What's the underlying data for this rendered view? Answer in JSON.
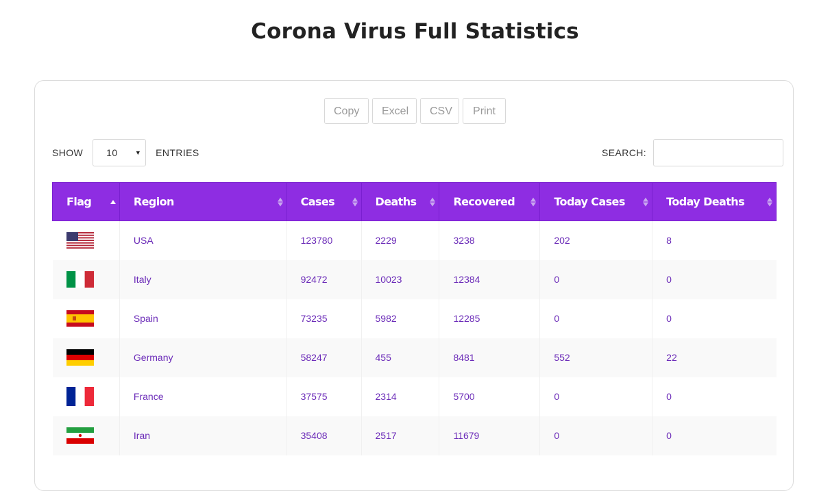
{
  "page": {
    "title": "Corona Virus Full Statistics"
  },
  "export_buttons": {
    "copy": "Copy",
    "excel": "Excel",
    "csv": "CSV",
    "print": "Print"
  },
  "length": {
    "show_label": "SHOW",
    "value": "10",
    "entries_label": "ENTRIES"
  },
  "search": {
    "label": "SEARCH:",
    "value": ""
  },
  "table": {
    "headers": {
      "flag": "Flag",
      "region": "Region",
      "cases": "Cases",
      "deaths": "Deaths",
      "recovered": "Recovered",
      "today_cases": "Today Cases",
      "today_deaths": "Today Deaths"
    },
    "rows": [
      {
        "flag": "usa-flag-icon",
        "region": "USA",
        "cases": "123780",
        "deaths": "2229",
        "recovered": "3238",
        "today_cases": "202",
        "today_deaths": "8"
      },
      {
        "flag": "italy-flag-icon",
        "region": "Italy",
        "cases": "92472",
        "deaths": "10023",
        "recovered": "12384",
        "today_cases": "0",
        "today_deaths": "0"
      },
      {
        "flag": "spain-flag-icon",
        "region": "Spain",
        "cases": "73235",
        "deaths": "5982",
        "recovered": "12285",
        "today_cases": "0",
        "today_deaths": "0"
      },
      {
        "flag": "germany-flag-icon",
        "region": "Germany",
        "cases": "58247",
        "deaths": "455",
        "recovered": "8481",
        "today_cases": "552",
        "today_deaths": "22"
      },
      {
        "flag": "france-flag-icon",
        "region": "France",
        "cases": "37575",
        "deaths": "2314",
        "recovered": "5700",
        "today_cases": "0",
        "today_deaths": "0"
      },
      {
        "flag": "iran-flag-icon",
        "region": "Iran",
        "cases": "35408",
        "deaths": "2517",
        "recovered": "11679",
        "today_cases": "0",
        "today_deaths": "0"
      }
    ]
  },
  "colors": {
    "header_bg": "#8e2de2",
    "cell_text": "#6b2bb8"
  }
}
